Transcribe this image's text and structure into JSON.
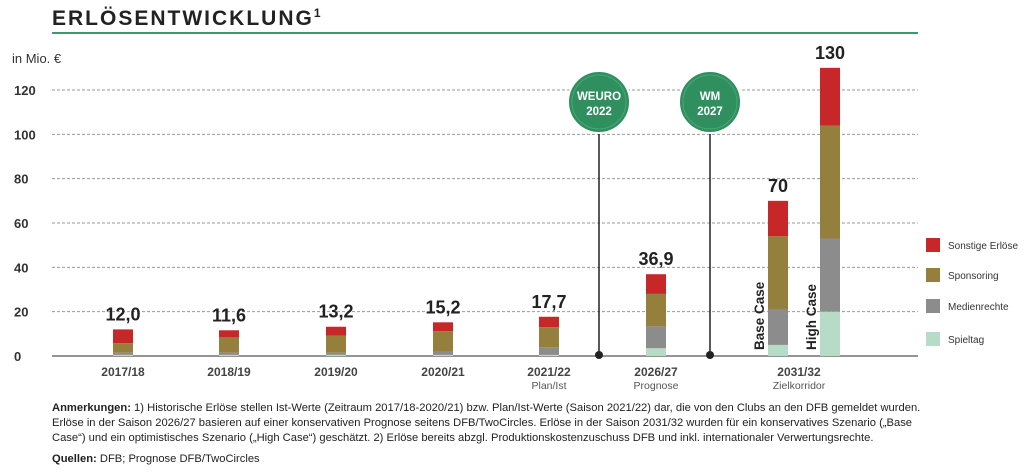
{
  "header": {
    "title": "ERLÖSENTWICKLUNG",
    "title_sup": "1"
  },
  "axis_unit": "in Mio. €",
  "chart_data": {
    "type": "bar",
    "stacked": true,
    "title": "ERLÖSENTWICKLUNG",
    "ylabel": "in Mio. €",
    "ylim": [
      0,
      130
    ],
    "yticks": [
      "0",
      "20",
      "40",
      "60",
      "80",
      "100",
      "120"
    ],
    "grid": true,
    "categories": [
      {
        "label": "2017/18",
        "sub": ""
      },
      {
        "label": "2018/19",
        "sub": ""
      },
      {
        "label": "2019/20",
        "sub": ""
      },
      {
        "label": "2020/21",
        "sub": ""
      },
      {
        "label": "2021/22",
        "sub": "Plan/Ist"
      },
      {
        "label": "2026/27",
        "sub": "Prognose"
      },
      {
        "label": "2031/32",
        "sub": "Zielkorridor"
      }
    ],
    "bars": [
      {
        "category": "2017/18",
        "total_label": "12,0",
        "values": [
          0.5,
          1.0,
          4.3,
          6.2
        ]
      },
      {
        "category": "2018/19",
        "total_label": "11,6",
        "values": [
          0.5,
          1.0,
          6.9,
          3.2
        ]
      },
      {
        "category": "2019/20",
        "total_label": "13,2",
        "values": [
          0.5,
          1.0,
          7.7,
          4.0
        ]
      },
      {
        "category": "2020/21",
        "total_label": "15,2",
        "values": [
          0.5,
          1.5,
          9.2,
          4.0
        ]
      },
      {
        "category": "2021/22",
        "total_label": "17,7",
        "values": [
          0.5,
          3.5,
          9.0,
          4.7
        ]
      },
      {
        "category": "2026/27",
        "total_label": "36,9",
        "values": [
          3.5,
          10.0,
          14.5,
          8.9
        ]
      },
      {
        "category": "2031/32",
        "total_label": "70",
        "side_label": "Base Case",
        "values": [
          5.0,
          16.0,
          33.0,
          16.0
        ]
      },
      {
        "category": "2031/32",
        "total_label": "130",
        "side_label": "High Case",
        "values": [
          20.0,
          33.0,
          51.0,
          26.0
        ]
      }
    ],
    "series": [
      {
        "name": "Spieltag",
        "color": "#b6dcc8"
      },
      {
        "name": "Medienrechte",
        "color": "#8c8c8c"
      },
      {
        "name": "Sponsoring",
        "color": "#94803c"
      },
      {
        "name": "Sonstige Erlöse",
        "color": "#c8272a"
      }
    ],
    "legend_order": [
      "Sonstige Erlöse",
      "Sponsoring",
      "Medienrechte",
      "Spieltag"
    ],
    "legend_position": "right",
    "annotations": [
      {
        "text_line1": "WEURO",
        "text_line2": "2022",
        "between": [
          "2021/22",
          "2026/27"
        ],
        "color": "#2f8f5e"
      },
      {
        "text_line1": "WM",
        "text_line2": "2027",
        "between": [
          "2026/27",
          "2031/32"
        ],
        "color": "#2f8f5e"
      }
    ]
  },
  "notes": {
    "label": "Anmerkungen:",
    "text": " 1) Historische Erlöse stellen Ist-Werte (Zeitraum 2017/18-2020/21) bzw. Plan/Ist-Werte (Saison 2021/22) dar, die von den Clubs an den DFB gemeldet wurden. Erlöse in der Saison 2026/27 basieren auf einer konservativen Prognose seitens DFB/TwoCircles. Erlöse in der Saison 2031/32 wurden für ein konservatives Szenario („Base Case“) und ein optimistisches Szenario („High Case“) geschätzt. 2) Erlöse bereits abzgl. Produktionskostenzuschuss DFB und inkl. internationaler Verwertungsrechte.",
    "sources_label": "Quellen:",
    "sources_text": " DFB; Prognose DFB/TwoCircles"
  }
}
